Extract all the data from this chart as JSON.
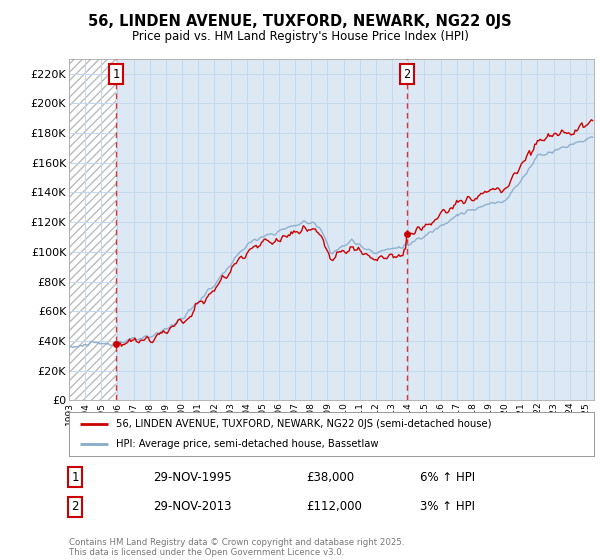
{
  "title_line1": "56, LINDEN AVENUE, TUXFORD, NEWARK, NG22 0JS",
  "title_line2": "Price paid vs. HM Land Registry's House Price Index (HPI)",
  "ylabel_ticks": [
    "£0",
    "£20K",
    "£40K",
    "£60K",
    "£80K",
    "£100K",
    "£120K",
    "£140K",
    "£160K",
    "£180K",
    "£200K",
    "£220K"
  ],
  "ylabel_values": [
    0,
    20000,
    40000,
    60000,
    80000,
    100000,
    120000,
    140000,
    160000,
    180000,
    200000,
    220000
  ],
  "ylim": [
    0,
    230000
  ],
  "x_start_year": 1993,
  "x_end_year": 2025,
  "hatch_color": "#bbbbbb",
  "grid_color": "#c5d8ee",
  "sale1_year": 1995.92,
  "sale1_price": 38000,
  "sale1_label": "1",
  "sale1_date": "29-NOV-1995",
  "sale1_amount": "£38,000",
  "sale1_hpi": "6% ↑ HPI",
  "sale2_year": 2013.92,
  "sale2_price": 112000,
  "sale2_label": "2",
  "sale2_date": "29-NOV-2013",
  "sale2_amount": "£112,000",
  "sale2_hpi": "3% ↑ HPI",
  "line_color_price": "#cc0000",
  "line_color_hpi": "#88aacc",
  "legend_label1": "56, LINDEN AVENUE, TUXFORD, NEWARK, NG22 0JS (semi-detached house)",
  "legend_label2": "HPI: Average price, semi-detached house, Bassetlaw",
  "footer": "Contains HM Land Registry data © Crown copyright and database right 2025.\nThis data is licensed under the Open Government Licence v3.0.",
  "bg_color": "#ffffff",
  "plot_bg_color": "#dce9f5"
}
